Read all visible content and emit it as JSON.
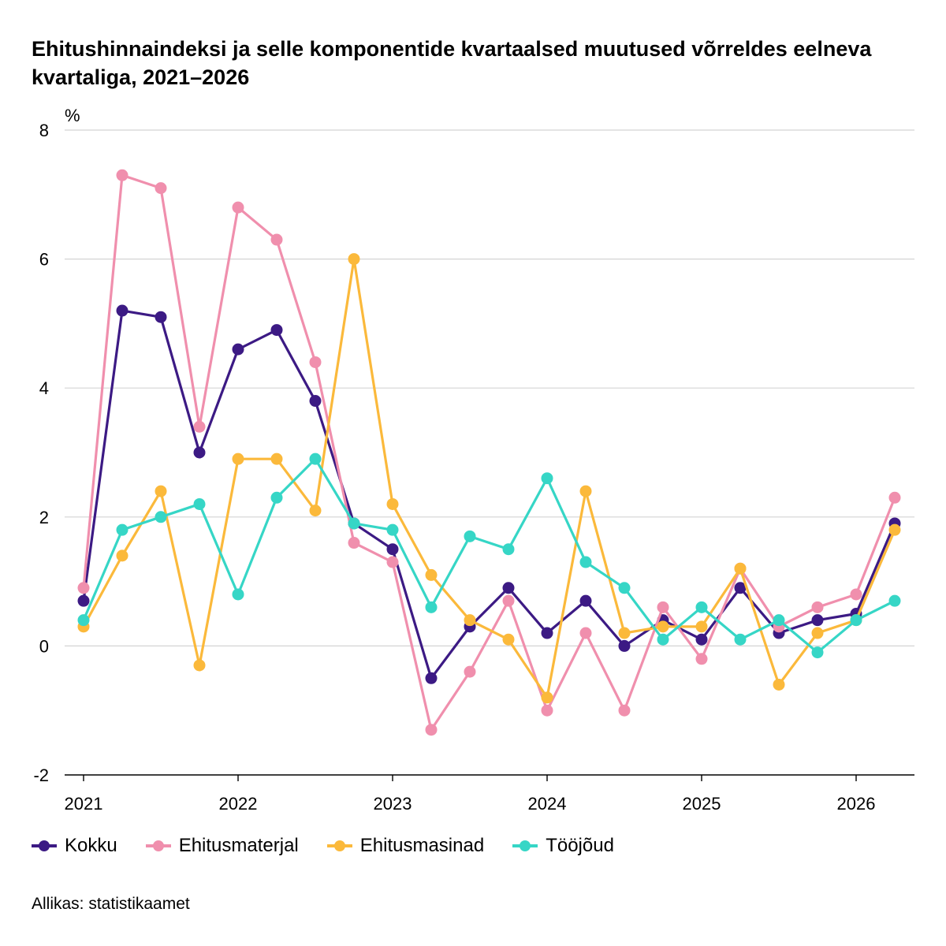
{
  "title": "Ehitushinnaindeksi ja selle komponentide kvartaalsed muutused võrreldes eelneva kvartaliga, 2021–2026",
  "source": "Allikas: statistikaamet",
  "chart_data": {
    "type": "line",
    "title": "Ehitushinnaindeksi ja selle komponentide kvartaalsed muutused võrreldes eelneva kvartaliga, 2021–2026",
    "ylabel": "%",
    "xlabel": "",
    "ylim": [
      -2,
      8
    ],
    "yticks": [
      -2,
      0,
      2,
      4,
      6,
      8
    ],
    "xticks": [
      "2021",
      "2022",
      "2023",
      "2024",
      "2025",
      "2026"
    ],
    "x": [
      "2021 I",
      "2021 II",
      "2021 III",
      "2021 IV",
      "2022 I",
      "2022 II",
      "2022 III",
      "2022 IV",
      "2023 I",
      "2023 II",
      "2023 III",
      "2023 IV",
      "2024 I",
      "2024 II",
      "2024 III",
      "2024 IV",
      "2025 I",
      "2025 II",
      "2025 III",
      "2025 IV",
      "2026 I",
      "2026 II"
    ],
    "grid": true,
    "legend_position": "bottom",
    "series": [
      {
        "name": "Kokku",
        "color": "#3c1a84",
        "values": [
          0.7,
          5.2,
          5.1,
          3.0,
          4.6,
          4.9,
          3.8,
          1.9,
          1.5,
          -0.5,
          0.3,
          0.9,
          0.2,
          0.7,
          0.0,
          0.4,
          0.1,
          0.9,
          0.2,
          0.4,
          0.5,
          1.9
        ]
      },
      {
        "name": "Ehitusmaterjal",
        "color": "#f08fad",
        "values": [
          0.9,
          7.3,
          7.1,
          3.4,
          6.8,
          6.3,
          4.4,
          1.6,
          1.3,
          -1.3,
          -0.4,
          0.7,
          -1.0,
          0.2,
          -1.0,
          0.6,
          -0.2,
          1.2,
          0.3,
          0.6,
          0.8,
          2.3
        ]
      },
      {
        "name": "Ehitusmasinad",
        "color": "#fbb93b",
        "values": [
          0.3,
          1.4,
          2.4,
          -0.3,
          2.9,
          2.9,
          2.1,
          6.0,
          2.2,
          1.1,
          0.4,
          0.1,
          -0.8,
          2.4,
          0.2,
          0.3,
          0.3,
          1.2,
          -0.6,
          0.2,
          0.4,
          1.8
        ]
      },
      {
        "name": "Tööjõud",
        "color": "#36d6c6",
        "values": [
          0.4,
          1.8,
          2.0,
          2.2,
          0.8,
          2.3,
          2.9,
          1.9,
          1.8,
          0.6,
          1.7,
          1.5,
          2.6,
          1.3,
          0.9,
          0.1,
          0.6,
          0.1,
          0.4,
          -0.1,
          0.4,
          0.7
        ]
      }
    ]
  }
}
